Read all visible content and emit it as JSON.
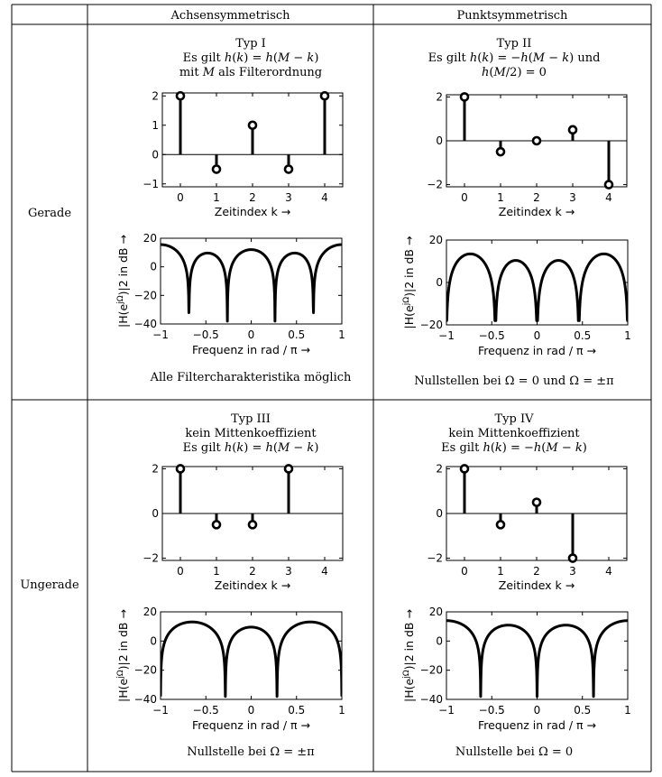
{
  "table": {
    "col_headers": [
      "Achsensymmetrisch",
      "Punktsymmetrisch"
    ],
    "row_headers": [
      "Gerade",
      "Ungerade"
    ]
  },
  "cells": [
    {
      "title_lines": [
        "Typ I",
        "Es gilt h(k) = h(M − k)",
        "mit M als Filterordnung"
      ],
      "footer": "Alle Filtercharakteristika möglich"
    },
    {
      "title_lines": [
        "Typ II",
        "Es gilt h(k) = −h(M − k) und",
        "h(M/2) = 0"
      ],
      "footer": "Nullstellen bei Ω = 0 und Ω = ±π"
    },
    {
      "title_lines": [
        "Typ III",
        "kein Mittenkoeffizient",
        "Es gilt h(k) = h(M − k)"
      ],
      "footer": "Nullstelle bei Ω = ±π"
    },
    {
      "title_lines": [
        "Typ IV",
        "kein Mittenkoeffizient",
        "Es gilt h(k) = −h(M − k)"
      ],
      "footer": "Nullstelle bei Ω = 0"
    }
  ],
  "chart_data": [
    {
      "type": "stem",
      "panel": "Typ I impulse response",
      "x": [
        0,
        1,
        2,
        3,
        4
      ],
      "y": [
        2,
        -0.5,
        1,
        -0.5,
        2
      ],
      "xlabel": "Zeitindex k →",
      "xlim": [
        -0.5,
        4.5
      ],
      "ylim": [
        -1.1,
        2.1
      ],
      "xticks": [
        "0",
        "1",
        "2",
        "3",
        "4"
      ],
      "yticks": [
        "2",
        "1",
        "0",
        "−1"
      ]
    },
    {
      "type": "stem",
      "panel": "Typ II impulse response",
      "x": [
        0,
        1,
        2,
        3,
        4
      ],
      "y": [
        2,
        -0.5,
        0,
        0.5,
        -2
      ],
      "xlabel": "Zeitindex k →",
      "xlim": [
        -0.5,
        4.5
      ],
      "ylim": [
        -2.1,
        2.1
      ],
      "xticks": [
        "0",
        "1",
        "2",
        "3",
        "4"
      ],
      "yticks": [
        "2",
        "0",
        "−2"
      ]
    },
    {
      "type": "stem",
      "panel": "Typ III impulse response",
      "x": [
        0,
        1,
        2,
        3
      ],
      "y": [
        2,
        -0.5,
        -0.5,
        2
      ],
      "xlabel": "Zeitindex k →",
      "xlim": [
        -0.5,
        4.5
      ],
      "ylim": [
        -2.1,
        2.1
      ],
      "xticks": [
        "0",
        "1",
        "2",
        "3",
        "4"
      ],
      "yticks": [
        "2",
        "0",
        "−2"
      ]
    },
    {
      "type": "stem",
      "panel": "Typ IV impulse response",
      "x": [
        0,
        1,
        2,
        3
      ],
      "y": [
        2,
        -0.5,
        0.5,
        -2
      ],
      "xlabel": "Zeitindex k →",
      "xlim": [
        -0.5,
        4.5
      ],
      "ylim": [
        -2.1,
        2.1
      ],
      "xticks": [
        "0",
        "1",
        "2",
        "3",
        "4"
      ],
      "yticks": [
        "2",
        "0",
        "−2"
      ]
    },
    {
      "type": "line",
      "panel": "Typ I magnitude response",
      "h": [
        2,
        -0.5,
        1,
        -0.5,
        2
      ],
      "xlabel": "Frequenz in rad / π →",
      "ylabel": "|H(e^jΩ)|2 in dB →",
      "xlim": [
        -1,
        1
      ],
      "ylim": [
        -40,
        20
      ],
      "xticks": [
        "−1",
        "−0.5",
        "0",
        "0.5",
        "1"
      ],
      "yticks": [
        "20",
        "0",
        "−20",
        "−40"
      ]
    },
    {
      "type": "line",
      "panel": "Typ II magnitude response",
      "h": [
        2,
        -0.5,
        0,
        0.5,
        -2
      ],
      "xlabel": "Frequenz in rad / π →",
      "ylabel": "|H(e^jΩ)|2 in dB →",
      "xlim": [
        -1,
        1
      ],
      "ylim": [
        -20,
        20
      ],
      "xticks": [
        "−1",
        "−0.5",
        "0",
        "0.5",
        "1"
      ],
      "yticks": [
        "20",
        "0",
        "−20"
      ]
    },
    {
      "type": "line",
      "panel": "Typ III magnitude response",
      "h": [
        2,
        -0.5,
        -0.5,
        2
      ],
      "xlabel": "Frequenz in rad / π →",
      "ylabel": "|H(e^jΩ)|2 in dB →",
      "xlim": [
        -1,
        1
      ],
      "ylim": [
        -40,
        20
      ],
      "xticks": [
        "−1",
        "−0.5",
        "0",
        "0.5",
        "1"
      ],
      "yticks": [
        "20",
        "0",
        "−20",
        "−40"
      ]
    },
    {
      "type": "line",
      "panel": "Typ IV magnitude response",
      "h": [
        2,
        -0.5,
        0.5,
        -2
      ],
      "xlabel": "Frequenz in rad / π →",
      "ylabel": "|H(e^jΩ)|2 in dB →",
      "xlim": [
        -1,
        1
      ],
      "ylim": [
        -40,
        20
      ],
      "xticks": [
        "−1",
        "−0.5",
        "0",
        "0.5",
        "1"
      ],
      "yticks": [
        "20",
        "0",
        "−20",
        "−40"
      ]
    }
  ]
}
